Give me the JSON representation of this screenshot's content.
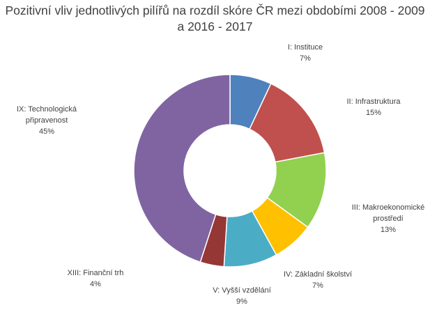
{
  "chart_data": {
    "type": "pie",
    "variant": "donut",
    "title_line1": "Pozitivní vliv jednotlivých pilířů na rozdíl skóre ČR mezi obdobími 2008 - 2009",
    "title_line2": "a 2016 - 2017",
    "legend": "none",
    "slices": [
      {
        "label": "I: Instituce",
        "label_lines": [
          "I: Instituce"
        ],
        "value": 7,
        "value_label": "7%",
        "color": "#4F81BD"
      },
      {
        "label": "II: Infrastruktura",
        "label_lines": [
          "II: Infrastruktura"
        ],
        "value": 15,
        "value_label": "15%",
        "color": "#C0504D"
      },
      {
        "label": "III: Makroekonomické prostředí",
        "label_lines": [
          "III: Makroekonomické",
          "prostředí"
        ],
        "value": 13,
        "value_label": "13%",
        "color": "#92D050"
      },
      {
        "label": "IV: Základní školství",
        "label_lines": [
          "IV: Základní školství"
        ],
        "value": 7,
        "value_label": "7%",
        "color": "#FFC000"
      },
      {
        "label": "V: Vyšší vzdělání",
        "label_lines": [
          "V: Vyšší vzdělání"
        ],
        "value": 9,
        "value_label": "9%",
        "color": "#4BACC6"
      },
      {
        "label": "XIII: Finanční trh",
        "label_lines": [
          "XIII: Finanční trh"
        ],
        "value": 4,
        "value_label": "4%",
        "color": "#953735"
      },
      {
        "label": "IX: Technologická připravenost",
        "label_lines": [
          "IX: Technologická",
          "připravenost"
        ],
        "value": 45,
        "value_label": "45%",
        "color": "#8064A2"
      }
    ]
  }
}
